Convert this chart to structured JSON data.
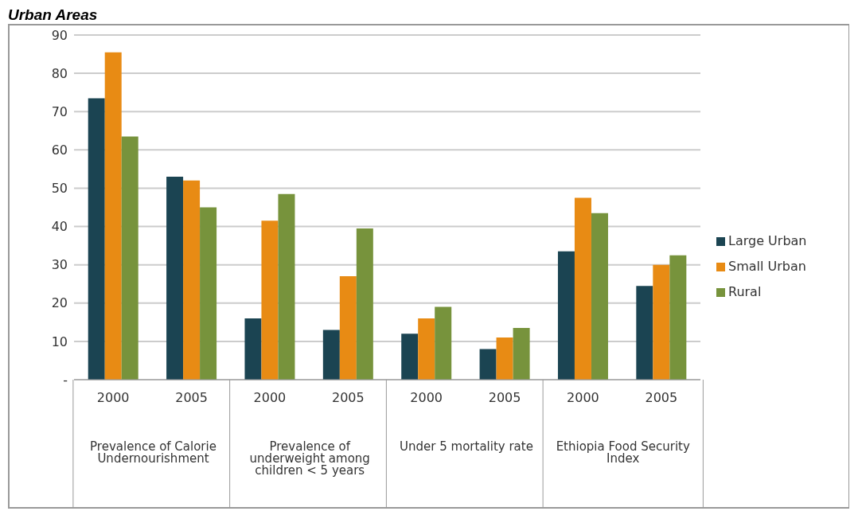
{
  "chart_data": {
    "type": "bar",
    "title": "Urban Areas",
    "categories": [
      "2000",
      "2005",
      "2000",
      "2005",
      "2000",
      "2005",
      "2000",
      "2005"
    ],
    "annotations": [
      "Prevalence of Calorie Undernourishment",
      "Prevalence of underweight among children < 5 years",
      "Under 5 mortality rate",
      "Ethiopia Food Security Index"
    ],
    "series": [
      {
        "name": "Large Urban",
        "color": "#1b4452",
        "values": [
          73.5,
          53,
          16,
          13,
          12,
          8,
          33.5,
          24.5
        ]
      },
      {
        "name": "Small Urban",
        "color": "#e88b14",
        "values": [
          85.5,
          52,
          41.5,
          27,
          16,
          11,
          47.5,
          30
        ]
      },
      {
        "name": "Rural",
        "color": "#77933c",
        "values": [
          63.5,
          45,
          48.5,
          39.5,
          19,
          13.5,
          43.5,
          32.5
        ]
      }
    ],
    "ylim": [
      0,
      90
    ],
    "yticks": [
      {
        "value": 0,
        "label": "-"
      },
      10,
      20,
      30,
      40,
      50,
      60,
      70,
      80,
      90
    ],
    "grid": "y",
    "legend": "right"
  }
}
